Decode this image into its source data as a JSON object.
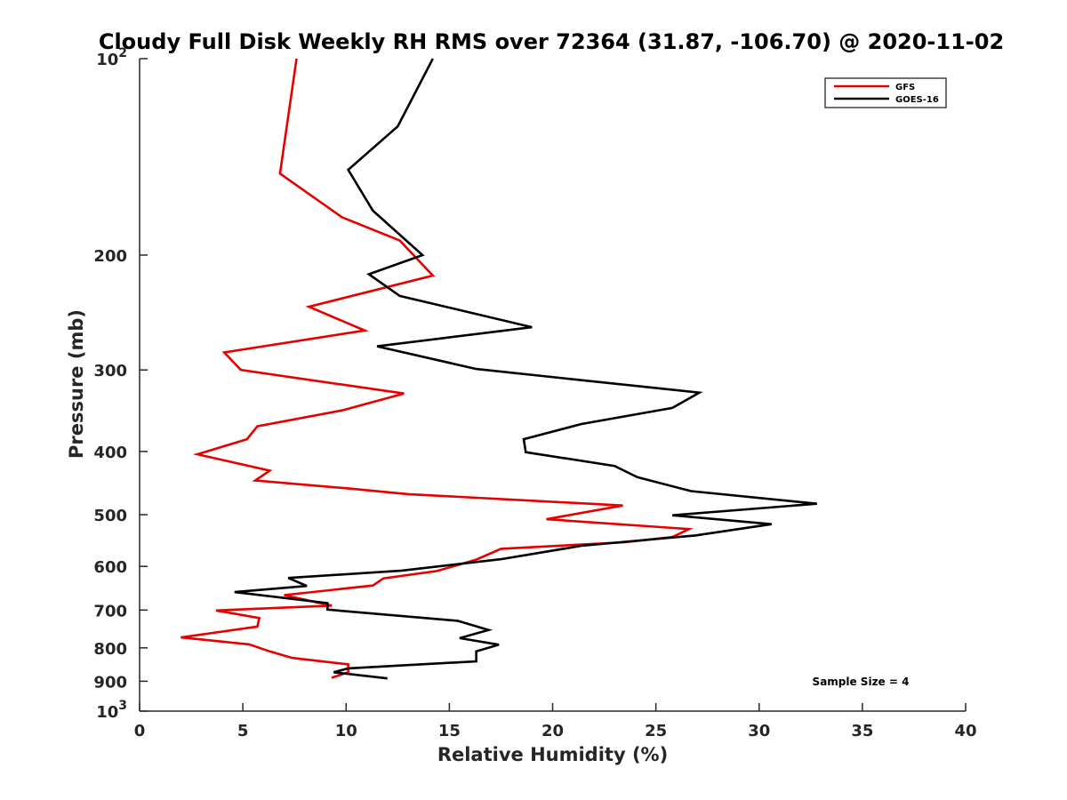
{
  "chart_data": {
    "type": "line",
    "title": "Cloudy Full Disk Weekly RH RMS over 72364 (31.87, -106.70) @ 2020-11-02",
    "xlabel": "Relative Humidity (%)",
    "ylabel": "Pressure (mb)",
    "xlim": [
      0,
      40
    ],
    "ylim": [
      100,
      1000
    ],
    "yscale": "log",
    "y_reversed": true,
    "x_ticks": [
      0,
      5,
      10,
      15,
      20,
      25,
      30,
      35,
      40
    ],
    "x_tick_labels": [
      "0",
      "5",
      "10",
      "15",
      "20",
      "25",
      "30",
      "35",
      "40"
    ],
    "y_ticks": [
      100,
      200,
      300,
      400,
      500,
      600,
      700,
      800,
      900,
      1000
    ],
    "y_tick_labels": [
      {
        "base": "10",
        "exp": "2"
      },
      {
        "base": "200"
      },
      {
        "base": "300"
      },
      {
        "base": "400"
      },
      {
        "base": "500"
      },
      {
        "base": "600"
      },
      {
        "base": "700"
      },
      {
        "base": "800"
      },
      {
        "base": "900"
      },
      {
        "base": "10",
        "exp": "3"
      }
    ],
    "grid": false,
    "legend_position": "top-right",
    "annotation": "Sample Size = 4",
    "series": [
      {
        "name": "GFS",
        "color": "#e60000",
        "points": [
          [
            7.6,
            100
          ],
          [
            6.8,
            150
          ],
          [
            9.8,
            175
          ],
          [
            12.6,
            190
          ],
          [
            14.2,
            215
          ],
          [
            8.2,
            240
          ],
          [
            10.9,
            261
          ],
          [
            4.1,
            282
          ],
          [
            4.9,
            300
          ],
          [
            12.8,
            326
          ],
          [
            9.8,
            346
          ],
          [
            5.7,
            366
          ],
          [
            5.2,
            383
          ],
          [
            2.8,
            404
          ],
          [
            6.3,
            428
          ],
          [
            5.6,
            443
          ],
          [
            10.2,
            456
          ],
          [
            13.0,
            465
          ],
          [
            23.4,
            484
          ],
          [
            19.7,
            508
          ],
          [
            26.6,
            526
          ],
          [
            25.8,
            541
          ],
          [
            23.5,
            551
          ],
          [
            17.5,
            564
          ],
          [
            16.3,
            586
          ],
          [
            14.4,
            610
          ],
          [
            11.8,
            626
          ],
          [
            11.3,
            642
          ],
          [
            7.0,
            664
          ],
          [
            9.3,
            689
          ],
          [
            3.7,
            701
          ],
          [
            5.8,
            720
          ],
          [
            5.7,
            742
          ],
          [
            2.0,
            771
          ],
          [
            5.3,
            790
          ],
          [
            6.3,
            810
          ],
          [
            7.4,
            829
          ],
          [
            10.1,
            848
          ],
          [
            10.1,
            872
          ],
          [
            9.3,
            889
          ]
        ]
      },
      {
        "name": "GOES-16",
        "color": "#000000",
        "points": [
          [
            14.2,
            100
          ],
          [
            12.5,
            127
          ],
          [
            10.1,
            148
          ],
          [
            11.3,
            171
          ],
          [
            13.7,
            200
          ],
          [
            11.1,
            214
          ],
          [
            12.6,
            231
          ],
          [
            19.0,
            258
          ],
          [
            11.5,
            276
          ],
          [
            16.3,
            299
          ],
          [
            27.1,
            325
          ],
          [
            25.8,
            343
          ],
          [
            21.4,
            363
          ],
          [
            18.6,
            383
          ],
          [
            18.7,
            401
          ],
          [
            23.0,
            421
          ],
          [
            24.1,
            438
          ],
          [
            26.7,
            460
          ],
          [
            32.8,
            481
          ],
          [
            25.8,
            501
          ],
          [
            30.6,
            517
          ],
          [
            26.9,
            538
          ],
          [
            21.4,
            558
          ],
          [
            17.5,
            585
          ],
          [
            12.7,
            609
          ],
          [
            7.2,
            625
          ],
          [
            8.1,
            643
          ],
          [
            4.6,
            657
          ],
          [
            9.1,
            683
          ],
          [
            9.1,
            699
          ],
          [
            15.4,
            727
          ],
          [
            16.9,
            751
          ],
          [
            15.5,
            773
          ],
          [
            17.4,
            791
          ],
          [
            16.3,
            810
          ],
          [
            16.3,
            839
          ],
          [
            10.1,
            860
          ],
          [
            9.4,
            872
          ],
          [
            12.0,
            891
          ]
        ]
      }
    ]
  }
}
